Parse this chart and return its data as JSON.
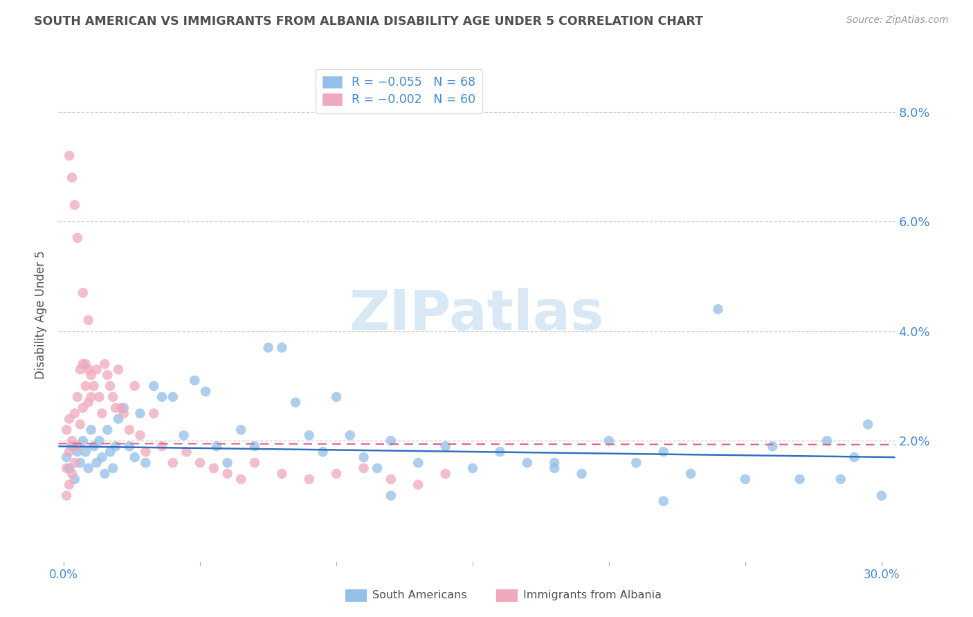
{
  "title": "SOUTH AMERICAN VS IMMIGRANTS FROM ALBANIA DISABILITY AGE UNDER 5 CORRELATION CHART",
  "source": "Source: ZipAtlas.com",
  "ylabel": "Disability Age Under 5",
  "ytick_labels": [
    "8.0%",
    "6.0%",
    "4.0%",
    "2.0%"
  ],
  "ytick_values": [
    0.08,
    0.06,
    0.04,
    0.02
  ],
  "xlim": [
    -0.002,
    0.305
  ],
  "ylim": [
    -0.002,
    0.088
  ],
  "legend_blue_text": "R = −0.055   N = 68",
  "legend_pink_text": "R = −0.002   N = 60",
  "legend_label_blue": "South Americans",
  "legend_label_pink": "Immigrants from Albania",
  "blue_color": "#92C0E8",
  "pink_color": "#F0A8BC",
  "blue_line_color": "#3070C0",
  "pink_line_color": "#E06080",
  "background_color": "#FFFFFF",
  "title_color": "#505050",
  "axis_label_color": "#4488CC",
  "source_color": "#999999",
  "grid_color": "#CCCCCC",
  "blue_scatter_x": [
    0.001,
    0.002,
    0.003,
    0.004,
    0.005,
    0.006,
    0.007,
    0.008,
    0.009,
    0.01,
    0.011,
    0.012,
    0.013,
    0.014,
    0.015,
    0.016,
    0.017,
    0.018,
    0.019,
    0.02,
    0.022,
    0.024,
    0.026,
    0.028,
    0.03,
    0.033,
    0.036,
    0.04,
    0.044,
    0.048,
    0.052,
    0.056,
    0.06,
    0.065,
    0.07,
    0.075,
    0.08,
    0.085,
    0.09,
    0.095,
    0.1,
    0.105,
    0.11,
    0.115,
    0.12,
    0.13,
    0.14,
    0.15,
    0.16,
    0.17,
    0.18,
    0.19,
    0.2,
    0.21,
    0.22,
    0.23,
    0.24,
    0.25,
    0.26,
    0.27,
    0.28,
    0.285,
    0.29,
    0.295,
    0.3,
    0.22,
    0.18,
    0.12
  ],
  "blue_scatter_y": [
    0.017,
    0.015,
    0.019,
    0.013,
    0.018,
    0.016,
    0.02,
    0.018,
    0.015,
    0.022,
    0.019,
    0.016,
    0.02,
    0.017,
    0.014,
    0.022,
    0.018,
    0.015,
    0.019,
    0.024,
    0.026,
    0.019,
    0.017,
    0.025,
    0.016,
    0.03,
    0.028,
    0.028,
    0.021,
    0.031,
    0.029,
    0.019,
    0.016,
    0.022,
    0.019,
    0.037,
    0.037,
    0.027,
    0.021,
    0.018,
    0.028,
    0.021,
    0.017,
    0.015,
    0.02,
    0.016,
    0.019,
    0.015,
    0.018,
    0.016,
    0.015,
    0.014,
    0.02,
    0.016,
    0.018,
    0.014,
    0.044,
    0.013,
    0.019,
    0.013,
    0.02,
    0.013,
    0.017,
    0.023,
    0.01,
    0.009,
    0.016,
    0.01
  ],
  "pink_scatter_x": [
    0.001,
    0.001,
    0.001,
    0.002,
    0.002,
    0.002,
    0.003,
    0.003,
    0.004,
    0.004,
    0.005,
    0.005,
    0.006,
    0.006,
    0.007,
    0.007,
    0.008,
    0.008,
    0.009,
    0.009,
    0.01,
    0.01,
    0.011,
    0.012,
    0.013,
    0.014,
    0.015,
    0.016,
    0.017,
    0.018,
    0.019,
    0.02,
    0.021,
    0.022,
    0.024,
    0.026,
    0.028,
    0.03,
    0.033,
    0.036,
    0.04,
    0.045,
    0.05,
    0.055,
    0.06,
    0.065,
    0.07,
    0.08,
    0.09,
    0.1,
    0.11,
    0.12,
    0.13,
    0.14,
    0.002,
    0.003,
    0.004,
    0.005,
    0.007,
    0.009
  ],
  "pink_scatter_y": [
    0.01,
    0.015,
    0.022,
    0.012,
    0.018,
    0.024,
    0.014,
    0.02,
    0.016,
    0.025,
    0.019,
    0.028,
    0.023,
    0.033,
    0.026,
    0.034,
    0.03,
    0.034,
    0.027,
    0.033,
    0.028,
    0.032,
    0.03,
    0.033,
    0.028,
    0.025,
    0.034,
    0.032,
    0.03,
    0.028,
    0.026,
    0.033,
    0.026,
    0.025,
    0.022,
    0.03,
    0.021,
    0.018,
    0.025,
    0.019,
    0.016,
    0.018,
    0.016,
    0.015,
    0.014,
    0.013,
    0.016,
    0.014,
    0.013,
    0.014,
    0.015,
    0.013,
    0.012,
    0.014,
    0.072,
    0.068,
    0.063,
    0.057,
    0.047,
    0.042
  ],
  "blue_line_y0": 0.019,
  "blue_line_y1": 0.017,
  "pink_line_y0": 0.0195,
  "pink_line_y1": 0.0193,
  "watermark": "ZIPatlas",
  "watermark_color": "#D8E8F4"
}
